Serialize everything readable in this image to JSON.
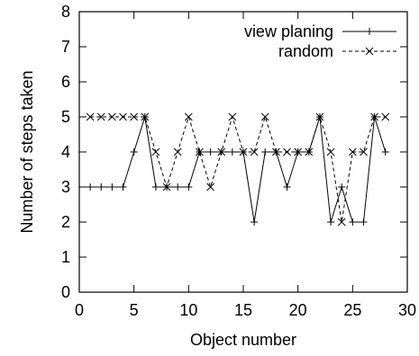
{
  "chart_data": {
    "type": "line",
    "xlabel": "Object number",
    "ylabel": "Number of steps taken",
    "xlim": [
      0,
      30
    ],
    "ylim": [
      0,
      8
    ],
    "xticks": [
      "0",
      "5",
      "10",
      "15",
      "20",
      "25",
      "30"
    ],
    "yticks": [
      "0",
      "1",
      "2",
      "3",
      "4",
      "5",
      "6",
      "7",
      "8"
    ],
    "grid": false,
    "legend_position": "top-right",
    "series": [
      {
        "name": "view planing",
        "marker": "plus",
        "line": "solid",
        "x": [
          1,
          2,
          3,
          4,
          5,
          6,
          7,
          8,
          9,
          10,
          11,
          12,
          13,
          14,
          15,
          16,
          17,
          18,
          19,
          20,
          21,
          22,
          23,
          24,
          25,
          26,
          27,
          28
        ],
        "y": [
          3,
          3,
          3,
          3,
          4,
          5,
          3,
          3,
          3,
          3,
          4,
          4,
          4,
          4,
          4,
          2,
          4,
          4,
          3,
          4,
          4,
          5,
          2,
          3,
          2,
          2,
          5,
          4
        ]
      },
      {
        "name": "random",
        "marker": "x",
        "line": "dashed",
        "x": [
          1,
          2,
          3,
          4,
          5,
          6,
          7,
          8,
          9,
          10,
          11,
          12,
          13,
          14,
          15,
          16,
          17,
          18,
          19,
          20,
          21,
          22,
          23,
          24,
          25,
          26,
          27,
          28
        ],
        "y": [
          5,
          5,
          5,
          5,
          5,
          5,
          4,
          3,
          4,
          5,
          4,
          3,
          4,
          5,
          4,
          4,
          5,
          4,
          4,
          4,
          4,
          5,
          4,
          2,
          4,
          4,
          5,
          5
        ]
      }
    ]
  }
}
